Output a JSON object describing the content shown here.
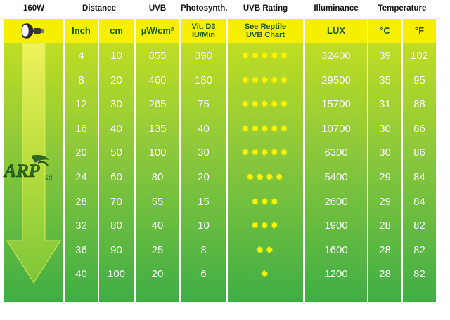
{
  "header": {
    "wattage": "160W",
    "distance": "Distance",
    "uvb": "UVB",
    "photosynth": "Photosynth.",
    "uvb_rating": "UVB Rating",
    "illuminance": "Illuminance",
    "temperature": "Temperature"
  },
  "subheader": {
    "inch": "Inch",
    "cm": "cm",
    "uvb_unit": "µW/cm²",
    "vitd3_line1": "Vit. D3",
    "vitd3_line2": "IU/Min",
    "rating_line1": "See Reptile",
    "rating_line2": "UVB Chart",
    "lux": "LUX",
    "celsius": "°C",
    "fahrenheit": "°F"
  },
  "icons": {
    "bulb": "spotlight-bulb-icon",
    "arrow": "down-arrow-icon",
    "rating": "star-sun-icon"
  },
  "colors": {
    "header_yellow": "#f6f000",
    "header_text": "#1b5a1b",
    "star": "#fff200",
    "band_top": "#cbe21d",
    "band_bottom": "#3fae45"
  },
  "rows": [
    {
      "inch": "4",
      "cm": "10",
      "uvb": "855",
      "vitd3": "390",
      "stars": 5,
      "lux": "32400",
      "c": "39",
      "f": "102"
    },
    {
      "inch": "8",
      "cm": "20",
      "uvb": "460",
      "vitd3": "180",
      "stars": 5,
      "lux": "29500",
      "c": "35",
      "f": "95"
    },
    {
      "inch": "12",
      "cm": "30",
      "uvb": "265",
      "vitd3": "75",
      "stars": 5,
      "lux": "15700",
      "c": "31",
      "f": "88"
    },
    {
      "inch": "16",
      "cm": "40",
      "uvb": "135",
      "vitd3": "40",
      "stars": 5,
      "lux": "10700",
      "c": "30",
      "f": "86"
    },
    {
      "inch": "20",
      "cm": "50",
      "uvb": "100",
      "vitd3": "30",
      "stars": 5,
      "lux": "6300",
      "c": "30",
      "f": "86"
    },
    {
      "inch": "24",
      "cm": "60",
      "uvb": "80",
      "vitd3": "20",
      "stars": 4,
      "lux": "5400",
      "c": "29",
      "f": "84"
    },
    {
      "inch": "28",
      "cm": "70",
      "uvb": "55",
      "vitd3": "15",
      "stars": 3,
      "lux": "2600",
      "c": "29",
      "f": "84"
    },
    {
      "inch": "32",
      "cm": "80",
      "uvb": "40",
      "vitd3": "10",
      "stars": 3,
      "lux": "1900",
      "c": "28",
      "f": "82"
    },
    {
      "inch": "36",
      "cm": "90",
      "uvb": "25",
      "vitd3": "8",
      "stars": 2,
      "lux": "1600",
      "c": "28",
      "f": "82"
    },
    {
      "inch": "40",
      "cm": "100",
      "uvb": "20",
      "vitd3": "6",
      "stars": 1,
      "lux": "1200",
      "c": "28",
      "f": "82"
    }
  ]
}
